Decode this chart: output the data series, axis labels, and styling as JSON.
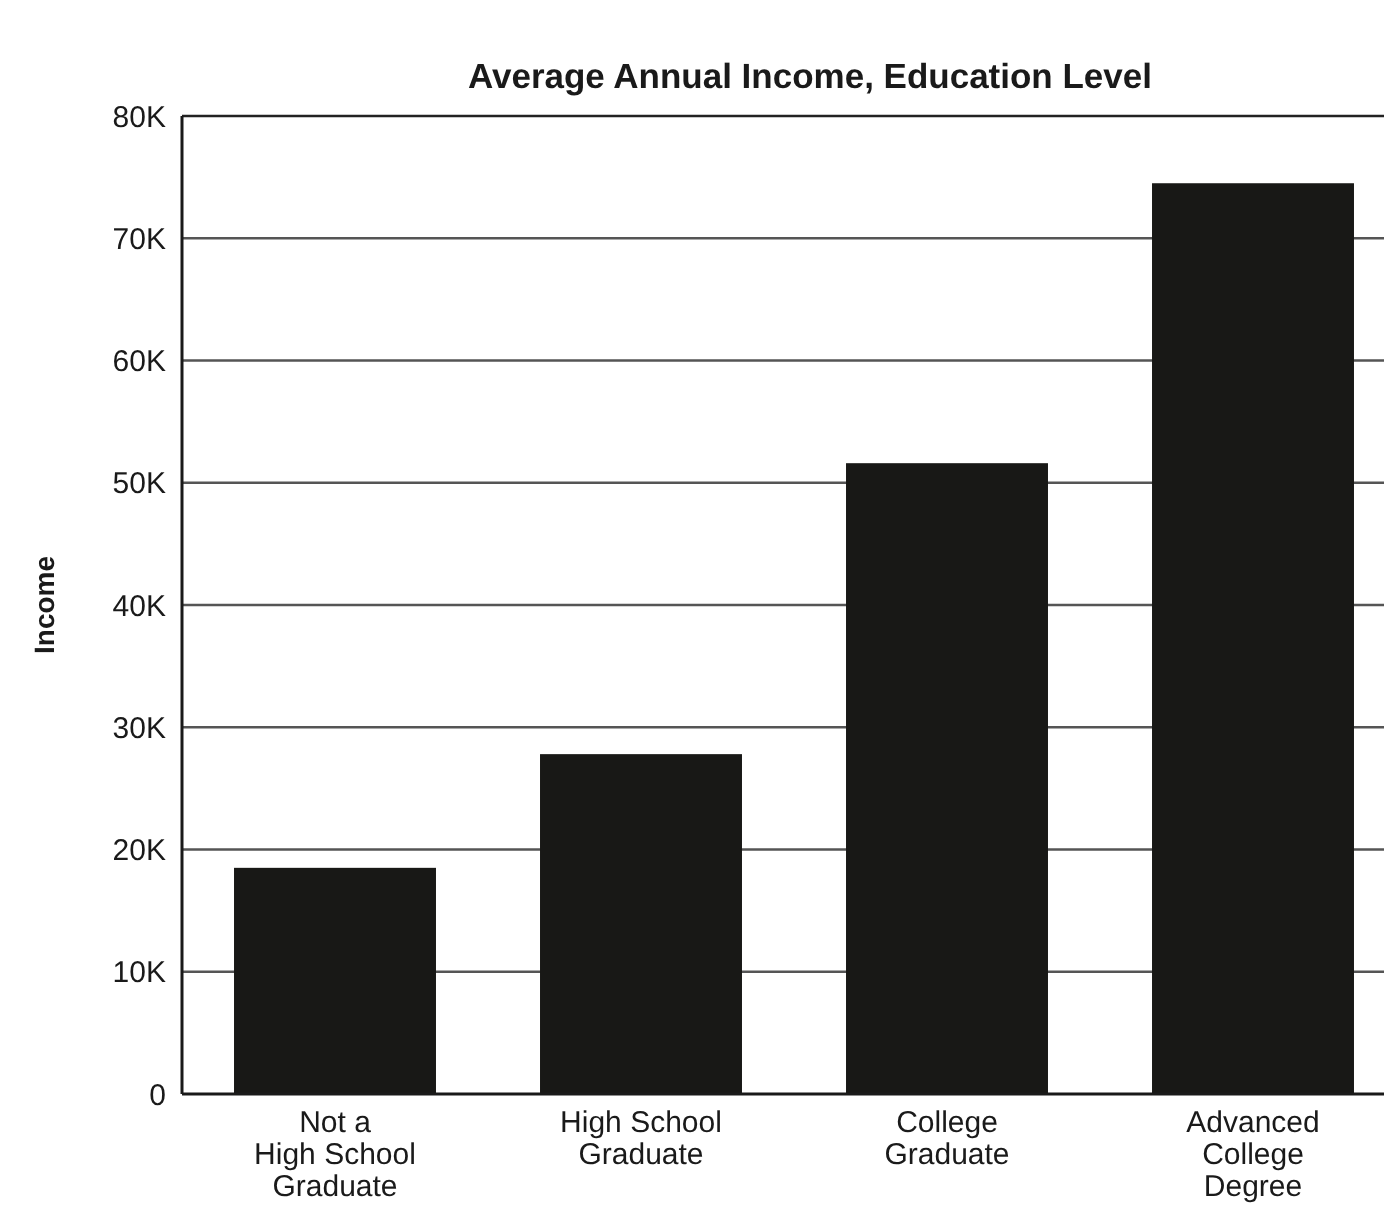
{
  "chart_data": {
    "type": "bar",
    "title": "Average Annual Income, Education Level",
    "ylabel": "Income",
    "categories": [
      "Not a\nHigh School\nGraduate",
      "High School\nGraduate",
      "College\nGraduate",
      "Advanced\nCollege\nDegree"
    ],
    "values": [
      18500,
      27800,
      51600,
      74500
    ],
    "color": "#181816",
    "ylim": [
      0,
      80000
    ],
    "yticks": [
      0,
      {
        "value": 10000,
        "label": "10K"
      },
      {
        "value": 20000,
        "label": "20K"
      },
      {
        "value": 30000,
        "label": "30K"
      },
      {
        "value": 40000,
        "label": "40K"
      },
      {
        "value": 50000,
        "label": "50K"
      },
      {
        "value": 60000,
        "label": "60K"
      },
      {
        "value": 70000,
        "label": "70K"
      },
      {
        "value": 80000,
        "label": "80K"
      }
    ],
    "grid": "y"
  }
}
